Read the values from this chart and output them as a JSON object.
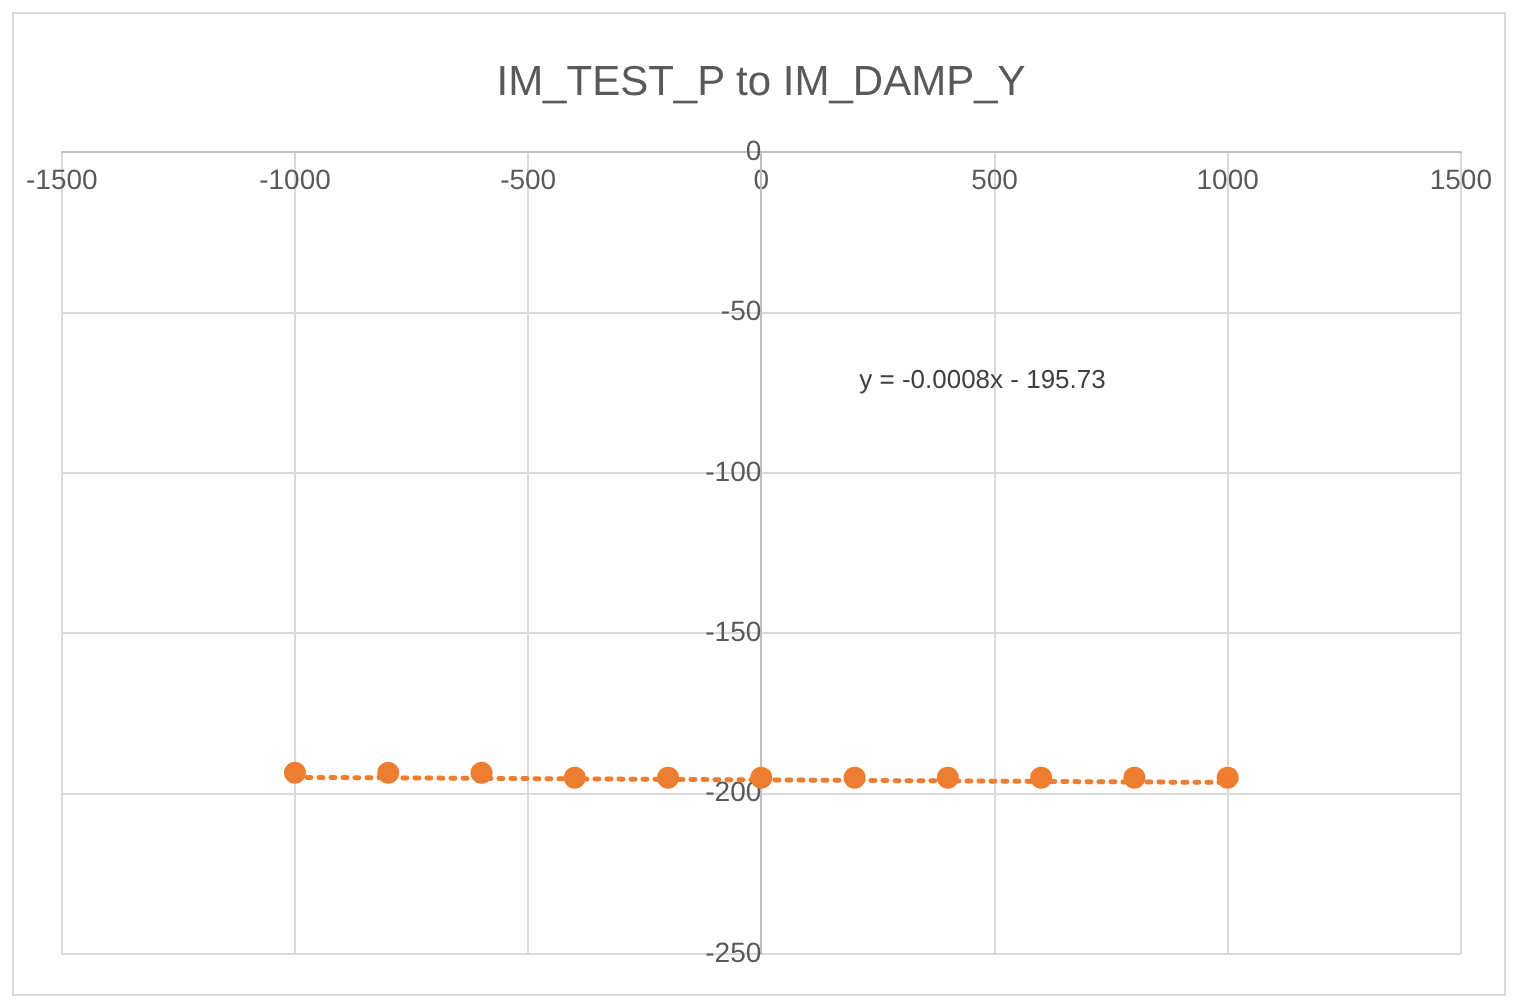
{
  "chart_data": {
    "type": "scatter",
    "title": "IM_TEST_P to IM_DAMP_Y",
    "x": [
      -1000,
      -800,
      -600,
      -400,
      -200,
      0,
      200,
      400,
      600,
      800,
      1000
    ],
    "series": [
      {
        "color": "#ed7d31",
        "values": [
          -193.5,
          -193.5,
          -193.5,
          -195,
          -195,
          -195,
          -195,
          -195,
          -195,
          -195,
          -195
        ],
        "marker": "circle"
      },
      {
        "type": "line",
        "color": "#ed7d31",
        "x": [
          -1000,
          1000
        ],
        "values": [
          -194.9,
          -196.5
        ],
        "line_style": "dotted",
        "marker": "none"
      }
    ],
    "xlim": [
      -1500,
      1500
    ],
    "xticks": [
      -1500,
      -1000,
      -500,
      0,
      500,
      1000,
      1500
    ],
    "ylim": [
      -250,
      0
    ],
    "yticks": [
      -250,
      -200,
      -150,
      -100,
      -50,
      0
    ],
    "grid": true,
    "legend": false,
    "annotations": [
      "y = -0.0008x - 195.73"
    ]
  }
}
